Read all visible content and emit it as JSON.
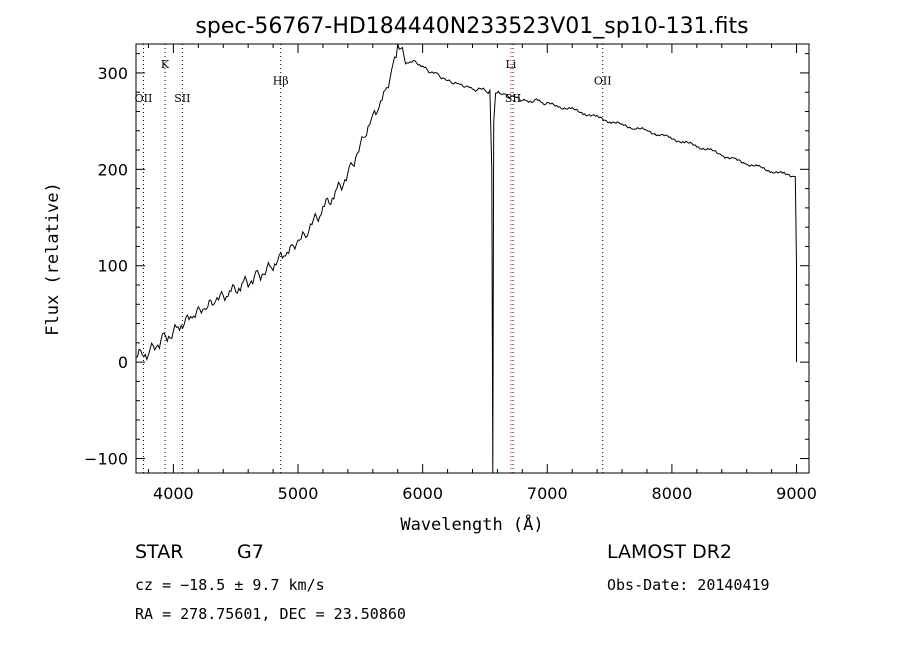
{
  "chart_data": {
    "type": "line",
    "title": "spec-56767-HD184440N233523V01_sp10-131.fits",
    "xlabel": "Wavelength (Å)",
    "ylabel": "Flux (relative)",
    "xlim": [
      3700,
      9100
    ],
    "ylim": [
      -115,
      330
    ],
    "x_ticks": [
      4000,
      5000,
      6000,
      7000,
      8000,
      9000
    ],
    "y_ticks": [
      -100,
      0,
      100,
      200,
      300
    ],
    "x_tick_labels": [
      "4000",
      "5000",
      "6000",
      "7000",
      "8000",
      "9000"
    ],
    "y_tick_labels": [
      "−100",
      "0",
      "100",
      "200",
      "300"
    ],
    "grid": false,
    "line_color": "#000000",
    "series": [
      {
        "x": [
          3700,
          3750,
          3800,
          3850,
          3900,
          3950,
          4000,
          4050,
          4100,
          4150,
          4200,
          4250,
          4300,
          4350,
          4400,
          4450,
          4500,
          4550,
          4600,
          4650,
          4700,
          4750,
          4800,
          4850,
          4900,
          4950,
          5000,
          5050,
          5100,
          5150,
          5200,
          5250,
          5300,
          5350,
          5400,
          5450,
          5500,
          5550,
          5600,
          5650,
          5700,
          5750,
          5775,
          5800,
          5850,
          5900,
          5950,
          6000,
          6050,
          6100,
          6150,
          6200,
          6250,
          6300,
          6350,
          6400,
          6450,
          6500,
          6540,
          6555,
          6563,
          6570,
          6585,
          6620,
          6650,
          6700,
          6750,
          6800,
          6850,
          6900,
          6950,
          7000,
          7100,
          7200,
          7300,
          7400,
          7500,
          7600,
          7700,
          7800,
          7900,
          8000,
          8100,
          8200,
          8300,
          8400,
          8500,
          8600,
          8700,
          8800,
          8900,
          8990,
          9000,
          9000
        ],
        "y": [
          5,
          10,
          8,
          18,
          22,
          28,
          30,
          38,
          42,
          48,
          52,
          55,
          60,
          65,
          68,
          72,
          76,
          80,
          84,
          88,
          92,
          96,
          100,
          108,
          112,
          118,
          125,
          130,
          140,
          150,
          158,
          168,
          175,
          185,
          195,
          210,
          225,
          240,
          255,
          265,
          280,
          300,
          315,
          325,
          318,
          310,
          312,
          306,
          302,
          300,
          296,
          292,
          290,
          288,
          286,
          283,
          283,
          282,
          280,
          200,
          -120,
          250,
          278,
          280,
          278,
          276,
          275,
          272,
          270,
          272,
          270,
          268,
          265,
          262,
          258,
          254,
          250,
          246,
          243,
          240,
          236,
          232,
          228,
          224,
          220,
          215,
          210,
          206,
          202,
          198,
          195,
          193,
          100,
          0
        ]
      }
    ],
    "lines": [
      {
        "x": 3760,
        "label": "OII",
        "color": "#000000",
        "label_y": 270
      },
      {
        "x": 3933,
        "label": "K",
        "color": "#000000",
        "label_y": 305
      },
      {
        "x": 4072,
        "label": "SII",
        "color": "#000000",
        "label_y": 270
      },
      {
        "x": 4861,
        "label": "Hβ",
        "color": "#000000",
        "label_y": 288
      },
      {
        "x": 6708,
        "label": "Li",
        "color": "#cc0000",
        "label_y": 305
      },
      {
        "x": 6725,
        "label": "SII",
        "color": "#000000",
        "label_y": 270
      },
      {
        "x": 7445,
        "label": "OII",
        "color": "#000000",
        "label_y": 288
      }
    ]
  },
  "info": {
    "object_class": "STAR",
    "subclass": "G7",
    "survey": "LAMOST DR2",
    "cz": "cz = −18.5 ± 9.7 km/s",
    "obs_date": "Obs-Date: 20140419",
    "coords": "RA = 278.75601, DEC =  23.50860"
  }
}
